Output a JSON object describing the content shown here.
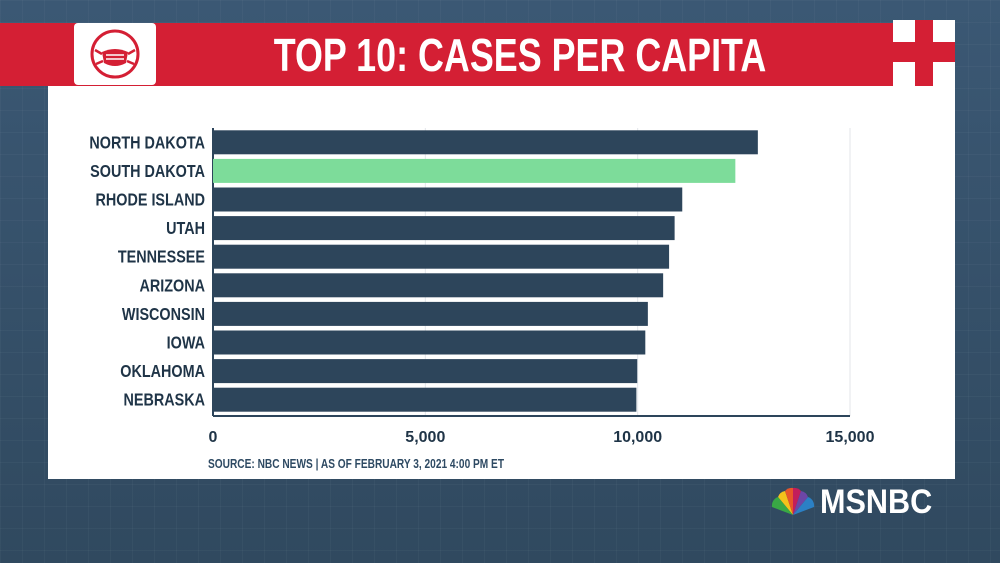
{
  "header": {
    "title": "TOP 10: CASES PER CAPITA",
    "badge_icon": "face-mask-icon",
    "corner_icon": "medical-cross-icon"
  },
  "source": "SOURCE: NBC NEWS  |  AS OF  FEBRUARY 3, 2021 4:00 PM ET",
  "logo": {
    "text": "MSNBC",
    "icon": "peacock-icon"
  },
  "colors": {
    "header": "#d41f34",
    "bar": "#2d455b",
    "highlight": "#7ddc9a",
    "background": "#35506a"
  },
  "chart_data": {
    "type": "bar",
    "orientation": "horizontal",
    "title": "TOP 10: CASES PER CAPITA",
    "xlabel": "",
    "ylabel": "",
    "categories": [
      "NORTH DAKOTA",
      "SOUTH DAKOTA",
      "RHODE ISLAND",
      "UTAH",
      "TENNESSEE",
      "ARIZONA",
      "WISCONSIN",
      "IOWA",
      "OKLAHOMA",
      "NEBRASKA"
    ],
    "values": [
      12830,
      12300,
      11050,
      10870,
      10740,
      10600,
      10240,
      10180,
      9990,
      9970
    ],
    "highlight_index": 1,
    "xlim": [
      0,
      15000
    ],
    "xticks": [
      0,
      5000,
      10000,
      15000
    ],
    "xtick_labels": [
      "0",
      "5,000",
      "10,000",
      "15,000"
    ],
    "grid": true
  }
}
